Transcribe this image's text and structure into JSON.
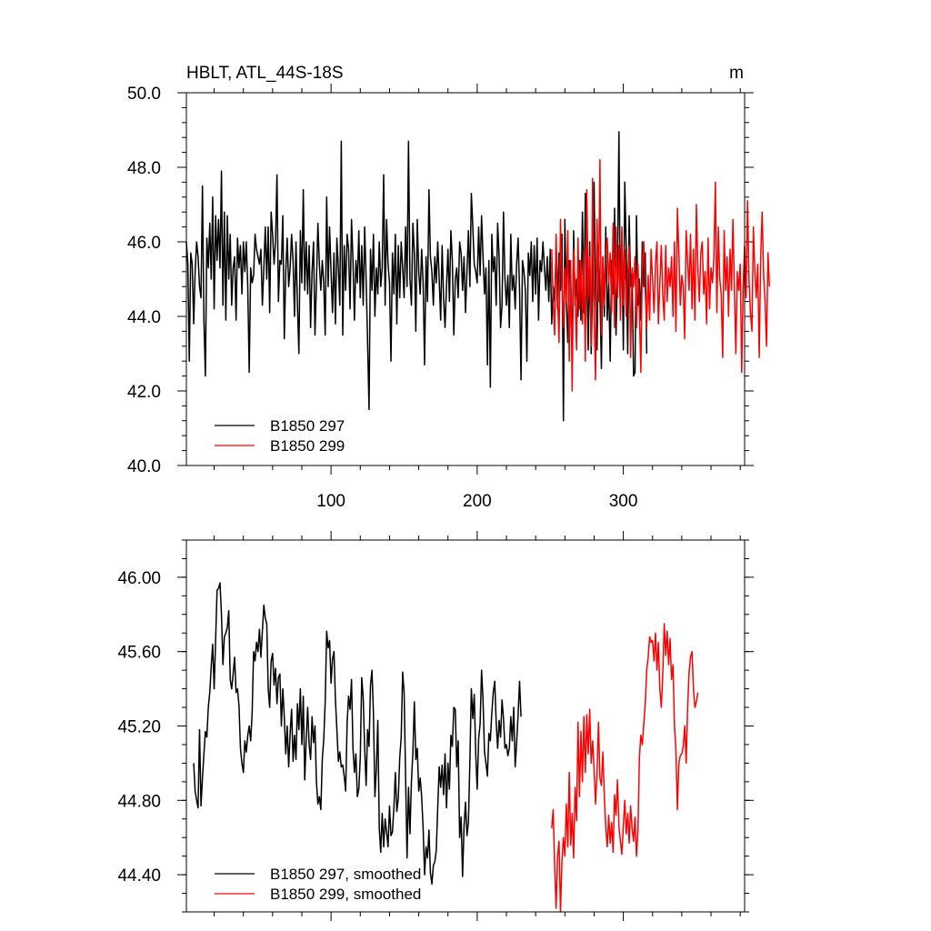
{
  "chart_data": [
    {
      "type": "line",
      "title": "HBLT, ATL_44S-18S",
      "units": "m",
      "xlim": [
        1,
        383
      ],
      "ylim": [
        40.0,
        50.0
      ],
      "x_ticks": [
        "100",
        "200",
        "300"
      ],
      "x_tick_values": [
        100,
        200,
        300
      ],
      "y_ticks": [
        "40.0",
        "42.0",
        "44.0",
        "46.0",
        "48.0",
        "50.0"
      ],
      "y_tick_values": [
        40,
        42,
        44,
        46,
        48,
        50
      ],
      "legend_position": "bottom-left",
      "grid": false,
      "series": [
        {
          "name": "B1850 297",
          "color": "#000000",
          "x_start": 1,
          "values": [
            46.0,
            45.4,
            42.8,
            45.7,
            45.4,
            43.8,
            45.2,
            46.0,
            45.6,
            44.8,
            44.5,
            47.5,
            43.9,
            42.4,
            46.1,
            45.3,
            46.5,
            45.0,
            47.2,
            44.2,
            46.7,
            45.5,
            46.6,
            45.3,
            47.9,
            44.3,
            46.8,
            43.9,
            46.7,
            45.0,
            46.2,
            44.3,
            45.3,
            45.6,
            43.9,
            46.1,
            45.3,
            45.9,
            44.6,
            46.0,
            45.2,
            46.0,
            44.8,
            42.5,
            45.3,
            44.9,
            45.1,
            46.2,
            45.8,
            45.6,
            45.4,
            45.8,
            44.3,
            45.3,
            46.4,
            45.0,
            46.4,
            44.1,
            46.8,
            46.2,
            45.4,
            46.0,
            47.8,
            44.4,
            45.5,
            45.4,
            46.7,
            43.4,
            45.2,
            46.1,
            44.8,
            45.3,
            46.2,
            45.5,
            44.0,
            46.0,
            44.3,
            43.0,
            46.3,
            44.9,
            47.4,
            44.7,
            46.0,
            44.6,
            45.9,
            43.7,
            45.2,
            46.0,
            43.5,
            44.9,
            46.5,
            45.4,
            44.7,
            45.5,
            44.9,
            43.5,
            47.2,
            44.8,
            46.4,
            45.2,
            44.1,
            45.7,
            43.8,
            46.1,
            45.3,
            44.3,
            48.7,
            43.5,
            45.9,
            44.7,
            46.2,
            45.8,
            44.2,
            46.6,
            45.5,
            43.9,
            45.5,
            44.9,
            46.3,
            44.5,
            45.9,
            44.3,
            46.4,
            45.0,
            43.3,
            41.5,
            45.8,
            44.7,
            46.2,
            44.0,
            45.3,
            44.6,
            46.0,
            44.8,
            45.3,
            47.8,
            44.3,
            46.6,
            45.4,
            44.9,
            42.8,
            45.7,
            44.6,
            46.2,
            43.8,
            45.9,
            44.5,
            46.0,
            45.3,
            44.5,
            46.4,
            44.8,
            48.7,
            45.0,
            44.3,
            46.5,
            45.7,
            43.6,
            46.6,
            45.2,
            44.6,
            45.8,
            44.9,
            42.7,
            45.6,
            44.4,
            47.4,
            45.6,
            45.2,
            44.3,
            45.6,
            44.9,
            46.0,
            45.0,
            43.9,
            45.9,
            44.5,
            43.7,
            44.8,
            45.8,
            44.4,
            46.3,
            45.5,
            43.5,
            45.0,
            45.3,
            44.5,
            46.0,
            45.7,
            44.7,
            45.6,
            44.1,
            45.2,
            46.3,
            44.8,
            47.3,
            46.4,
            45.4,
            45.2,
            44.9,
            46.4,
            45.1,
            46.7,
            45.6,
            44.6,
            45.3,
            42.7,
            45.5,
            42.1,
            46.2,
            45.2,
            45.6,
            44.3,
            46.5,
            45.6,
            43.7,
            44.3,
            46.8,
            45.0,
            44.3,
            45.1,
            43.7,
            46.2,
            44.7,
            45.1,
            44.2,
            45.4,
            46.1,
            44.7,
            42.3,
            45.5,
            45.2,
            44.7,
            42.8,
            45.7,
            45.1,
            46.0,
            44.4,
            45.9,
            44.6,
            46.1,
            43.9,
            45.5,
            45.2,
            46.0,
            45.3,
            44.7,
            45.6,
            44.4,
            45.8,
            43.8,
            44.8,
            44.4,
            45.8,
            44.2,
            45.7,
            44.7,
            46.2,
            41.2,
            46.6,
            44.4,
            43.3,
            45.5,
            44.9,
            43.0,
            46.3,
            44.3,
            45.0,
            44.0,
            45.5,
            43.9,
            46.8,
            44.1,
            47.3,
            45.2,
            43.1,
            46.0,
            43.0,
            44.9,
            47.6,
            44.5,
            43.1,
            45.9,
            44.6,
            42.6,
            45.6,
            44.0,
            46.4,
            43.9,
            44.9,
            42.8,
            45.5,
            44.6,
            46.9,
            43.5,
            45.2,
            48.95,
            44.0,
            46.3,
            43.1,
            47.6,
            45.8,
            43.0,
            46.7,
            44.8,
            45.2,
            42.4,
            42.5,
            46.7,
            44.3,
            45.0,
            43.9,
            46.0,
            44.8,
            45.7,
            43.0
          ],
          "label_color": "#000000"
        },
        {
          "name": "B1850 299",
          "color": "#ff0000",
          "x_start": 251,
          "values": [
            45.8,
            44.4,
            43.5,
            46.2,
            44.6,
            43.3,
            46.6,
            44.9,
            43.7,
            45.3,
            44.4,
            46.3,
            42.8,
            45.5,
            42.0,
            45.8,
            44.7,
            43.1,
            46.1,
            44.2,
            45.5,
            43.8,
            45.8,
            42.8,
            47.4,
            44.5,
            45.6,
            43.2,
            47.7,
            44.1,
            42.3,
            46.6,
            44.4,
            48.2,
            43.5,
            45.6,
            44.3,
            45.7,
            46.1,
            44.9,
            45.7,
            44.1,
            46.5,
            43.7,
            46.4,
            44.5,
            45.9,
            43.9,
            46.4,
            44.3,
            45.8,
            44.0,
            45.1,
            45.9,
            42.9,
            45.3,
            44.8,
            45.6,
            43.7,
            45.4,
            44.2,
            42.5,
            45.4,
            46.0,
            44.7,
            43.7,
            45.1,
            43.9,
            45.8,
            45.0,
            44.1,
            45.4,
            46.0,
            43.8,
            44.9,
            45.9,
            44.6,
            43.9,
            45.9,
            44.4,
            45.3,
            44.8,
            45.6,
            44.0,
            46.0,
            43.6,
            46.9,
            45.7,
            44.3,
            45.1,
            44.8,
            43.4,
            46.3,
            45.5,
            44.7,
            46.2,
            44.2,
            45.8,
            43.9,
            47.0,
            45.3,
            44.4,
            45.7,
            46.0,
            44.6,
            45.2,
            43.8,
            46.1,
            44.2,
            45.3,
            44.9,
            45.6,
            47.6,
            44.1,
            46.4,
            45.0,
            44.6,
            42.9,
            46.3,
            44.7,
            45.6,
            44.0,
            45.8,
            44.7,
            46.6,
            44.8,
            43.0,
            45.2,
            44.7,
            45.4,
            42.5,
            44.8,
            45.9,
            44.5,
            47.1,
            45.0,
            44.1,
            43.6,
            46.4,
            45.2,
            44.5,
            45.4,
            42.9,
            45.6,
            46.8,
            45.1,
            44.4,
            43.2,
            45.7,
            44.8
          ],
          "label_color": "#ff0000"
        }
      ]
    },
    {
      "type": "line",
      "xlim": [
        1,
        383
      ],
      "ylim": [
        44.2,
        46.2
      ],
      "x_tick_values": [
        100,
        200,
        300
      ],
      "y_ticks": [
        "44.40",
        "44.80",
        "45.20",
        "45.60",
        "46.00"
      ],
      "y_tick_values": [
        44.4,
        44.8,
        45.2,
        45.6,
        46.0
      ],
      "legend_position": "bottom-left",
      "grid": false,
      "series": [
        {
          "name": "B1850 297, smoothed",
          "color": "#000000",
          "x_start": 6,
          "values": [
            45.0,
            44.85,
            44.8,
            44.76,
            45.18,
            44.77,
            44.92,
            45.05,
            45.17,
            45.14,
            45.3,
            45.38,
            45.52,
            45.64,
            45.4,
            45.66,
            45.93,
            45.94,
            45.97,
            45.8,
            45.53,
            45.68,
            45.7,
            45.73,
            45.82,
            45.45,
            45.4,
            45.48,
            45.57,
            45.38,
            45.4,
            45.31,
            45.08,
            45.0,
            44.95,
            45.12,
            45.06,
            45.15,
            45.2,
            45.12,
            45.27,
            45.6,
            45.55,
            45.65,
            45.6,
            45.72,
            45.57,
            45.71,
            45.85,
            45.78,
            45.75,
            45.4,
            45.3,
            45.55,
            45.59,
            45.42,
            45.51,
            45.32,
            45.46,
            45.48,
            45.2,
            45.4,
            45.25,
            45.05,
            45.2,
            44.98,
            45.16,
            45.29,
            45.01,
            45.15,
            45.02,
            45.32,
            45.18,
            45.4,
            45.1,
            45.36,
            44.91,
            45.13,
            45.3,
            45.1,
            45.02,
            45.25,
            45.11,
            45.2,
            44.9,
            44.78,
            44.82,
            44.75,
            45.02,
            45.13,
            45.33,
            45.71,
            45.62,
            45.66,
            45.43,
            45.56,
            45.6,
            45.34,
            45.18,
            45.01,
            45.06,
            44.98,
            44.99,
            44.93,
            44.85,
            45.22,
            45.36,
            45.29,
            45.45,
            45.08,
            44.95,
            45.05,
            44.82,
            44.86,
            45.03,
            45.46,
            45.35,
            45.08,
            44.88,
            45.18,
            45.09,
            45.42,
            45.5,
            45.27,
            44.82,
            44.97,
            45.23,
            44.65,
            44.52,
            44.73,
            44.55,
            44.7,
            44.63,
            44.55,
            44.77,
            44.61,
            44.63,
            44.76,
            44.95,
            44.74,
            44.81,
            45.03,
            45.14,
            45.49,
            45.38,
            44.93,
            44.49,
            44.87,
            44.62,
            44.9,
            45.06,
            45.33,
            45.02,
            45.08,
            44.85,
            44.92,
            44.82,
            44.65,
            44.4,
            44.55,
            44.49,
            44.64,
            44.41,
            44.35,
            44.45,
            44.47,
            44.53,
            44.76,
            44.98,
            44.87,
            44.99,
            44.83,
            45.05,
            44.76,
            45.0,
            44.86,
            45.15,
            45.09,
            45.3,
            45.29,
            44.98,
            45.12,
            44.6,
            44.71,
            44.39,
            44.66,
            44.79,
            44.61,
            44.68,
            45.01,
            45.4,
            45.24,
            45.37,
            45.05,
            44.86,
            45.13,
            45.21,
            45.5,
            45.34,
            45.06,
            45.0,
            44.93,
            45.16,
            45.12,
            45.27,
            45.38,
            45.44,
            45.22,
            45.08,
            45.23,
            45.14,
            45.34,
            45.24,
            45.08,
            45.1,
            45.04,
            45.08,
            45.25,
            45.12,
            45.3,
            44.98,
            45.11,
            45.26,
            45.44,
            45.25
          ]
        },
        {
          "name": "B1850 299, smoothed",
          "color": "#ff0000",
          "x_start": 251,
          "values": [
            44.65,
            44.75,
            44.45,
            44.22,
            44.5,
            44.58,
            44.2,
            44.47,
            44.6,
            44.5,
            44.78,
            44.55,
            44.95,
            44.56,
            44.73,
            44.49,
            44.87,
            44.69,
            45.22,
            44.82,
            45.17,
            44.9,
            45.25,
            44.95,
            45.26,
            45.05,
            45.29,
            45.0,
            45.12,
            44.97,
            44.78,
            44.95,
            45.22,
            44.92,
            44.88,
            45.06,
            44.82,
            44.65,
            44.55,
            44.72,
            44.57,
            44.68,
            44.52,
            44.83,
            44.72,
            44.91,
            44.66,
            44.58,
            44.51,
            44.66,
            44.8,
            44.62,
            44.73,
            44.57,
            44.77,
            44.65,
            44.58,
            44.71,
            44.5,
            44.63,
            45.03,
            45.15,
            45.1,
            45.21,
            45.32,
            45.5,
            45.57,
            45.68,
            45.65,
            45.66,
            45.55,
            45.7,
            45.5,
            45.65,
            45.4,
            45.3,
            45.48,
            45.75,
            45.58,
            45.71,
            45.53,
            45.67,
            45.45,
            45.53,
            45.2,
            45.07,
            44.75,
            45.0,
            45.04,
            45.05,
            45.09,
            45.2,
            45.0,
            45.3,
            45.49,
            45.57,
            45.6,
            45.4,
            45.3,
            45.33,
            45.38
          ]
        }
      ]
    }
  ]
}
